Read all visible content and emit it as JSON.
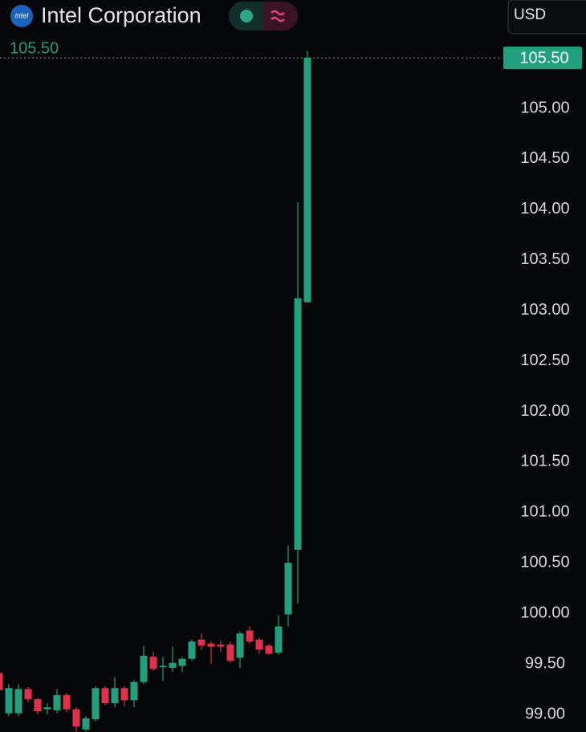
{
  "chart_data": {
    "type": "candlestick",
    "title": "Intel Corporation",
    "logo_text": "intel",
    "currency": "USD",
    "last_price": {
      "value": 105.5,
      "label": "105.50"
    },
    "up_color": "#22a07d",
    "down_color": "#e0304a",
    "open": [
      99.41,
      99.01,
      99.01,
      99.25,
      99.15,
      99.05,
      99.04,
      99.19,
      99.05,
      98.85,
      98.95,
      99.26,
      99.11,
      99.26,
      99.14,
      99.32,
      99.57,
      99.47,
      99.46,
      99.48,
      99.55,
      99.74,
      99.7,
      99.69,
      99.69,
      99.56,
      99.83,
      99.74,
      99.68,
      99.61,
      99.99,
      100.63,
      103.08
    ],
    "high": [
      99.42,
      99.3,
      99.3,
      99.27,
      99.16,
      99.11,
      99.25,
      99.21,
      99.07,
      98.98,
      99.28,
      99.28,
      99.37,
      99.28,
      99.34,
      99.68,
      99.62,
      99.57,
      99.67,
      99.57,
      99.74,
      99.8,
      99.72,
      99.73,
      99.72,
      99.82,
      99.87,
      99.76,
      99.7,
      99.98,
      100.67,
      104.07,
      105.57
    ],
    "low": [
      99.05,
      98.98,
      98.98,
      99.12,
      99.0,
      99.0,
      99.01,
      99.02,
      98.83,
      98.83,
      98.93,
      99.09,
      99.07,
      99.08,
      99.07,
      99.3,
      99.43,
      99.33,
      99.42,
      99.42,
      99.53,
      99.64,
      99.5,
      99.62,
      99.51,
      99.46,
      99.7,
      99.6,
      99.59,
      99.59,
      99.87,
      100.1,
      103.08
    ],
    "close": [
      99.24,
      99.26,
      99.25,
      99.15,
      99.03,
      99.07,
      99.19,
      99.05,
      98.88,
      98.96,
      99.26,
      99.11,
      99.26,
      99.14,
      99.32,
      99.58,
      99.45,
      99.48,
      99.51,
      99.55,
      99.72,
      99.68,
      99.67,
      99.67,
      99.53,
      99.8,
      99.72,
      99.64,
      99.6,
      99.87,
      100.5,
      103.12,
      105.5
    ],
    "ylim": [
      98.825,
      106.073
    ],
    "yticks": [
      {
        "value": 99,
        "label": "99.00"
      },
      {
        "value": 99.5,
        "label": "99.50"
      },
      {
        "value": 100,
        "label": "100.00"
      },
      {
        "value": 100.5,
        "label": "100.50"
      },
      {
        "value": 101,
        "label": "101.00"
      },
      {
        "value": 101.5,
        "label": "101.50"
      },
      {
        "value": 102,
        "label": "102.00"
      },
      {
        "value": 102.5,
        "label": "102.50"
      },
      {
        "value": 103,
        "label": "103.00"
      },
      {
        "value": 103.5,
        "label": "103.50"
      },
      {
        "value": 104,
        "label": "104.00"
      },
      {
        "value": 104.5,
        "label": "104.50"
      },
      {
        "value": 105,
        "label": "105.00"
      }
    ]
  }
}
